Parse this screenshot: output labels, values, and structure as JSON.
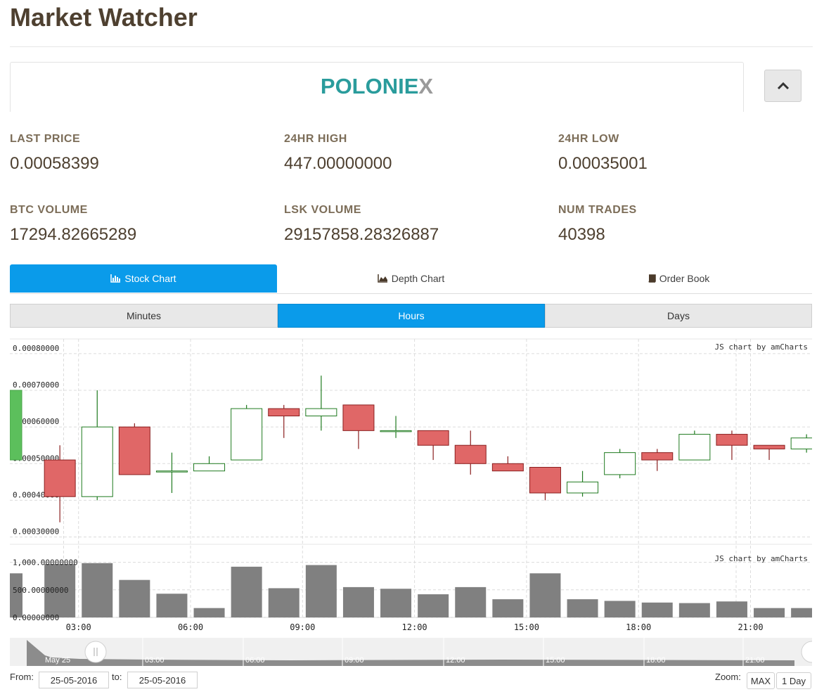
{
  "page": {
    "title": "Market Watcher"
  },
  "exchange": {
    "logo_main": "POLONIE",
    "logo_accent": "X"
  },
  "stats": [
    {
      "label": "LAST PRICE",
      "value": "0.00058399"
    },
    {
      "label": "24HR HIGH",
      "value": "447.00000000"
    },
    {
      "label": "24HR LOW",
      "value": "0.00035001"
    },
    {
      "label": "BTC VOLUME",
      "value": "17294.82665289"
    },
    {
      "label": "LSK VOLUME",
      "value": "29157858.28326887"
    },
    {
      "label": "NUM TRADES",
      "value": "40398"
    }
  ],
  "tabs": [
    {
      "label": "Stock Chart",
      "icon": "bar-chart-icon",
      "active": true
    },
    {
      "label": "Depth Chart",
      "icon": "area-chart-icon",
      "active": false
    },
    {
      "label": "Order Book",
      "icon": "book-icon",
      "active": false
    }
  ],
  "periods": [
    {
      "label": "Minutes",
      "active": false
    },
    {
      "label": "Hours",
      "active": true
    },
    {
      "label": "Days",
      "active": false
    }
  ],
  "chart_data": {
    "type": "candlestick",
    "credit": "JS chart by amCharts",
    "price_axis": {
      "ticks": [
        "0.00080000",
        "0.00070000",
        "0.00060000",
        "0.00050000",
        "0.00040000",
        "0.00030000"
      ],
      "range": [
        0.00028,
        0.00084
      ]
    },
    "volume_axis": {
      "ticks": [
        "1,000.00000000",
        "500.00000000",
        "0.00000000"
      ],
      "range": [
        0,
        1250
      ]
    },
    "x_ticks": [
      "03:00",
      "06:00",
      "09:00",
      "12:00",
      "15:00",
      "18:00",
      "21:00"
    ],
    "colors": {
      "up": "#1f7a1f",
      "down": "#e06767",
      "partial": "#5cbf5c",
      "volume": "#808080"
    },
    "candles": [
      {
        "open": 0.0007,
        "close": 0.00051,
        "high": 0.0007,
        "low": 0.00051,
        "partial": true
      },
      {
        "open": 0.00051,
        "close": 0.00041,
        "high": 0.00055,
        "low": 0.00034
      },
      {
        "open": 0.00041,
        "close": 0.0006,
        "high": 0.0007,
        "low": 0.0004
      },
      {
        "open": 0.0006,
        "close": 0.00047,
        "high": 0.00061,
        "low": 0.00047
      },
      {
        "open": 0.00048,
        "close": 0.00048,
        "high": 0.00053,
        "low": 0.00042
      },
      {
        "open": 0.00048,
        "close": 0.0005,
        "high": 0.00052,
        "low": 0.00048
      },
      {
        "open": 0.00051,
        "close": 0.00065,
        "high": 0.00066,
        "low": 0.00051
      },
      {
        "open": 0.00065,
        "close": 0.00063,
        "high": 0.00066,
        "low": 0.00057
      },
      {
        "open": 0.00063,
        "close": 0.00065,
        "high": 0.00074,
        "low": 0.00059
      },
      {
        "open": 0.00066,
        "close": 0.00059,
        "high": 0.00066,
        "low": 0.00054
      },
      {
        "open": 0.00059,
        "close": 0.00059,
        "high": 0.00063,
        "low": 0.00057
      },
      {
        "open": 0.00059,
        "close": 0.00055,
        "high": 0.00059,
        "low": 0.00051
      },
      {
        "open": 0.00055,
        "close": 0.0005,
        "high": 0.00059,
        "low": 0.00047
      },
      {
        "open": 0.0005,
        "close": 0.00048,
        "high": 0.00052,
        "low": 0.00048
      },
      {
        "open": 0.00049,
        "close": 0.00042,
        "high": 0.00049,
        "low": 0.0004
      },
      {
        "open": 0.00042,
        "close": 0.00045,
        "high": 0.00048,
        "low": 0.00041
      },
      {
        "open": 0.00047,
        "close": 0.00053,
        "high": 0.00054,
        "low": 0.00046
      },
      {
        "open": 0.00053,
        "close": 0.00051,
        "high": 0.00054,
        "low": 0.00048
      },
      {
        "open": 0.00051,
        "close": 0.00058,
        "high": 0.00059,
        "low": 0.00051
      },
      {
        "open": 0.00058,
        "close": 0.00055,
        "high": 0.00059,
        "low": 0.00051
      },
      {
        "open": 0.00055,
        "close": 0.00054,
        "high": 0.00055,
        "low": 0.00051
      },
      {
        "open": 0.00054,
        "close": 0.00057,
        "high": 0.00058,
        "low": 0.00053
      }
    ],
    "volumes": [
      800,
      970,
      985,
      680,
      430,
      170,
      920,
      530,
      950,
      550,
      520,
      420,
      550,
      330,
      800,
      330,
      300,
      270,
      260,
      290,
      170,
      170
    ]
  },
  "navigator": {
    "labels": [
      "May 25",
      "03:00",
      "06:00",
      "09:00",
      "12:00",
      "15:00",
      "18:00",
      "21:00"
    ]
  },
  "footer": {
    "from_label": "From:",
    "from_value": "25-05-2016",
    "to_label": "to:",
    "to_value": "25-05-2016",
    "zoom_label": "Zoom:",
    "zoom_options": [
      "MAX",
      "1 Day"
    ]
  }
}
